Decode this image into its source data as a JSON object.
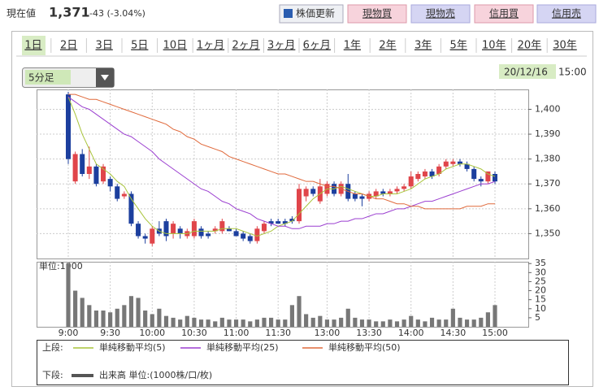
{
  "header": {
    "label": "現在値",
    "price": "1,371",
    "change": "-43 (-3.04%)",
    "buttons": [
      "株価更新",
      "現物買",
      "現物売",
      "信用買",
      "信用売"
    ]
  },
  "tabs": [
    "1日",
    "2日",
    "3日",
    "5日",
    "10日",
    "1ヶ月",
    "2ヶ月",
    "3ヶ月",
    "6ヶ月",
    "1年",
    "2年",
    "3年",
    "5年",
    "10年",
    "20年",
    "30年"
  ],
  "interval": "5分足",
  "date": "20/12/16",
  "time": "15:00",
  "chart_data": {
    "type": "candlestick",
    "categories": [
      "9:00",
      null,
      null,
      null,
      null,
      null,
      "9:30",
      null,
      null,
      null,
      null,
      null,
      "10:00",
      null,
      null,
      null,
      null,
      null,
      "10:30",
      null,
      null,
      null,
      null,
      null,
      "11:00",
      null,
      null,
      null,
      null,
      null,
      "11:30",
      null,
      null,
      null,
      null,
      null,
      null,
      "13:00",
      null,
      null,
      null,
      null,
      null,
      "13:30",
      null,
      null,
      null,
      null,
      null,
      "14:00",
      null,
      null,
      null,
      null,
      null,
      "14:30",
      null,
      null,
      null,
      null,
      null,
      "15:00"
    ],
    "open": [
      1406,
      1371,
      1382,
      1374,
      1377,
      1371,
      1372,
      1369,
      1365,
      1366,
      1354,
      1349,
      1346,
      1352,
      1355,
      1350,
      1352,
      1349,
      1349,
      1352,
      1350,
      1351,
      1351,
      1352,
      1351,
      1350,
      1349,
      1347,
      1351,
      1355,
      1355,
      1355,
      1356,
      1355,
      1365,
      1368,
      1363,
      1366,
      1370,
      1366,
      1370,
      1366,
      1365,
      1364,
      1365,
      1367,
      1366,
      1367,
      1368,
      1369,
      1372,
      1373,
      1375,
      1374,
      1377,
      1378,
      1379,
      1378,
      1376,
      1372,
      1371,
      1374
    ],
    "high": [
      1407,
      1383,
      1384,
      1385,
      1378,
      1378,
      1373,
      1370,
      1367,
      1367,
      1355,
      1350,
      1353,
      1355,
      1356,
      1355,
      1353,
      1352,
      1356,
      1353,
      1351,
      1353,
      1356,
      1353,
      1352,
      1351,
      1350,
      1353,
      1355,
      1356,
      1356,
      1356,
      1357,
      1370,
      1369,
      1369,
      1372,
      1371,
      1371,
      1371,
      1374,
      1367,
      1366,
      1367,
      1368,
      1368,
      1368,
      1369,
      1370,
      1375,
      1375,
      1376,
      1376,
      1378,
      1380,
      1380,
      1380,
      1379,
      1377,
      1373,
      1375,
      1375
    ],
    "low": [
      1378,
      1370,
      1373,
      1372,
      1369,
      1370,
      1367,
      1363,
      1364,
      1353,
      1348,
      1346,
      1345,
      1349,
      1347,
      1348,
      1348,
      1348,
      1348,
      1348,
      1348,
      1350,
      1350,
      1351,
      1349,
      1347,
      1346,
      1346,
      1350,
      1353,
      1354,
      1353,
      1354,
      1354,
      1363,
      1365,
      1362,
      1365,
      1365,
      1365,
      1363,
      1363,
      1361,
      1363,
      1364,
      1365,
      1365,
      1366,
      1367,
      1368,
      1371,
      1372,
      1372,
      1373,
      1376,
      1377,
      1377,
      1375,
      1371,
      1369,
      1370,
      1370
    ],
    "close": [
      1380,
      1382,
      1374,
      1377,
      1370,
      1377,
      1369,
      1364,
      1366,
      1354,
      1349,
      1348,
      1352,
      1350,
      1349,
      1354,
      1350,
      1351,
      1355,
      1349,
      1349,
      1352,
      1355,
      1351,
      1349,
      1348,
      1347,
      1352,
      1354,
      1354,
      1354,
      1354,
      1355,
      1368,
      1368,
      1366,
      1369,
      1370,
      1366,
      1370,
      1364,
      1364,
      1364,
      1366,
      1367,
      1366,
      1367,
      1368,
      1369,
      1373,
      1374,
      1375,
      1373,
      1377,
      1379,
      1379,
      1378,
      1376,
      1372,
      1371,
      1375,
      1371
    ],
    "up_color": "#e0454a",
    "down_color": "#1c3f9e",
    "ylim": [
      1340,
      1408
    ],
    "yticks": [
      {
        "value": 1350,
        "label": "1,350"
      },
      {
        "value": 1360,
        "label": "1,360"
      },
      {
        "value": 1370,
        "label": "1,370"
      },
      {
        "value": 1380,
        "label": "1,380"
      },
      {
        "value": 1390,
        "label": "1,390"
      },
      {
        "value": 1400,
        "label": "1,400"
      }
    ],
    "grid": true,
    "series": [
      {
        "name": "単純移動平均(5)",
        "color": "#a8c43a",
        "values": [
          1405,
          1398,
          1390,
          1384,
          1378,
          1376,
          1374,
          1371,
          1369,
          1364,
          1360,
          1356,
          1353,
          1351,
          1350,
          1350,
          1350,
          1350,
          1351,
          1351,
          1351,
          1351,
          1352,
          1352,
          1352,
          1351,
          1350,
          1349,
          1350,
          1351,
          1353,
          1354,
          1355,
          1358,
          1361,
          1364,
          1366,
          1368,
          1368,
          1369,
          1368,
          1367,
          1366,
          1365,
          1365,
          1366,
          1366,
          1366,
          1367,
          1368,
          1370,
          1372,
          1373,
          1374,
          1376,
          1377,
          1378,
          1378,
          1377,
          1376,
          1374,
          1373
        ]
      },
      {
        "name": "単純移動平均(25)",
        "color": "#9b3fd0",
        "values": [
          1405,
          1403,
          1401,
          1400,
          1398,
          1396,
          1394,
          1392,
          1390,
          1389,
          1387,
          1385,
          1383,
          1380,
          1378,
          1376,
          1374,
          1372,
          1370,
          1368,
          1367,
          1365,
          1363,
          1362,
          1360,
          1359,
          1358,
          1356,
          1355,
          1354,
          1353,
          1353,
          1352,
          1352,
          1353,
          1353,
          1353,
          1354,
          1354,
          1355,
          1355,
          1356,
          1356,
          1357,
          1358,
          1358,
          1359,
          1360,
          1360,
          1361,
          1362,
          1363,
          1363,
          1364,
          1365,
          1366,
          1367,
          1368,
          1369,
          1370,
          1370,
          1371
        ]
      },
      {
        "name": "単純移動平均(50)",
        "color": "#e06a3c",
        "values": [
          1406,
          1406,
          1405,
          1404,
          1404,
          1403,
          1402,
          1401,
          1400,
          1399,
          1398,
          1397,
          1396,
          1395,
          1394,
          1392,
          1391,
          1389,
          1388,
          1386,
          1385,
          1384,
          1383,
          1381,
          1380,
          1379,
          1378,
          1377,
          1376,
          1375,
          1374,
          1374,
          1373,
          1372,
          1371,
          1371,
          1370,
          1369,
          1369,
          1368,
          1367,
          1366,
          1366,
          1365,
          1364,
          1364,
          1363,
          1362,
          1362,
          1361,
          1361,
          1360,
          1360,
          1360,
          1360,
          1360,
          1360,
          1361,
          1361,
          1361,
          1362,
          1362
        ]
      }
    ],
    "volume": {
      "name": "出来高 単位:(1000株/口/枚)",
      "unit_label": "単位:1000",
      "color": "#777777",
      "ylim": [
        0,
        36
      ],
      "yticks": [
        5,
        10,
        15,
        20,
        25,
        30,
        35
      ],
      "values": [
        35,
        20,
        16,
        12,
        9,
        9,
        8,
        10,
        12,
        17,
        16,
        9,
        7,
        10,
        6,
        5,
        4,
        6,
        5,
        4,
        4,
        3,
        5,
        4,
        4,
        4,
        3,
        4,
        5,
        5,
        4,
        4,
        12,
        17,
        7,
        5,
        6,
        4,
        4,
        5,
        10,
        5,
        4,
        4,
        3,
        3,
        4,
        3,
        4,
        6,
        4,
        3,
        5,
        4,
        4,
        10,
        5,
        4,
        4,
        5,
        8,
        12
      ]
    },
    "legend": {
      "upper": "上段:",
      "lower": "下段:"
    }
  }
}
